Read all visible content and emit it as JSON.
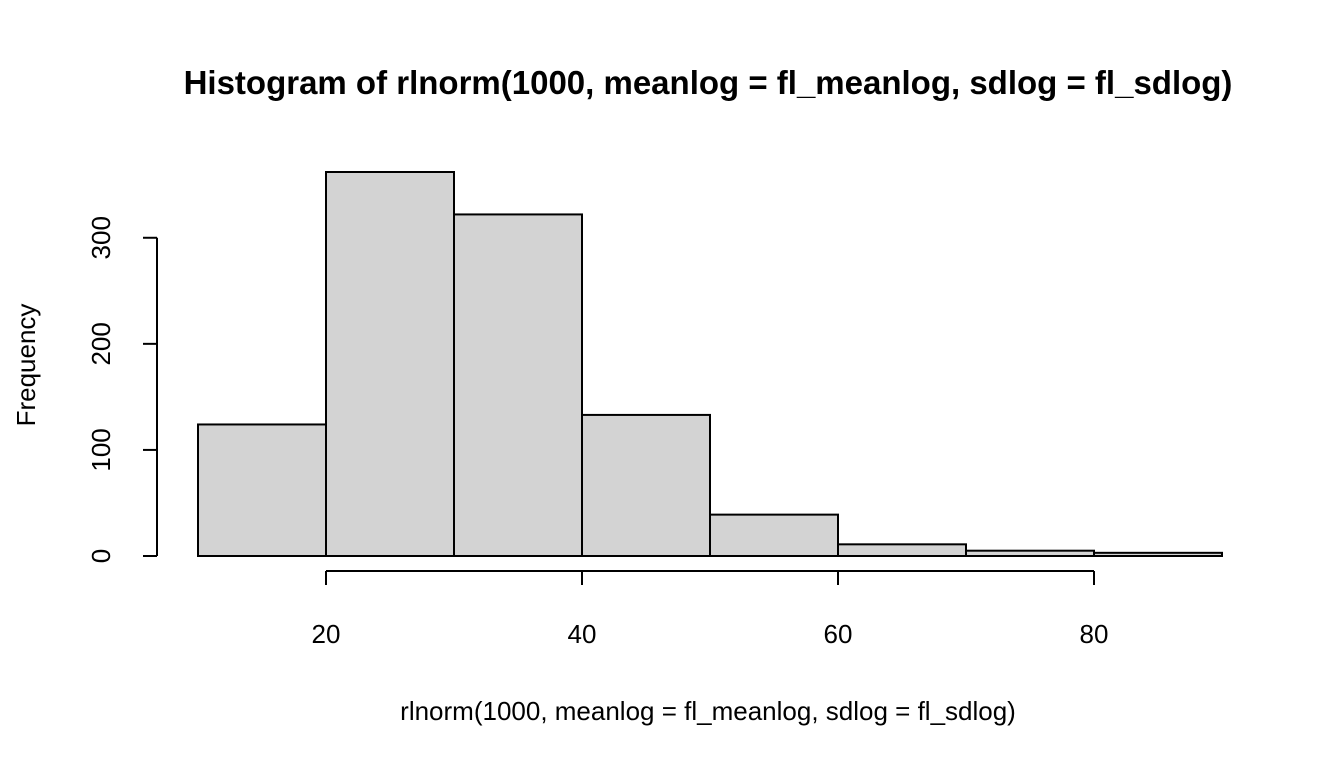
{
  "chart_data": {
    "type": "bar",
    "title": "Histogram of rlnorm(1000, meanlog = fl_meanlog, sdlog = fl_sdlog)",
    "xlabel": "rlnorm(1000, meanlog = fl_meanlog, sdlog = fl_sdlog)",
    "ylabel": "Frequency",
    "bins": [
      {
        "start": 10,
        "end": 20,
        "count": 124
      },
      {
        "start": 20,
        "end": 30,
        "count": 362
      },
      {
        "start": 30,
        "end": 40,
        "count": 322
      },
      {
        "start": 40,
        "end": 50,
        "count": 133
      },
      {
        "start": 50,
        "end": 60,
        "count": 39
      },
      {
        "start": 60,
        "end": 70,
        "count": 11
      },
      {
        "start": 70,
        "end": 80,
        "count": 5
      },
      {
        "start": 80,
        "end": 90,
        "count": 3
      }
    ],
    "xticks": [
      20,
      40,
      60,
      80
    ],
    "yticks": [
      0,
      100,
      200,
      300
    ],
    "xlim": [
      10,
      90
    ],
    "ylim": [
      0,
      362
    ],
    "grid": false,
    "legend": "none",
    "bar_fill": "#d3d3d3",
    "bar_stroke": "#000000"
  }
}
